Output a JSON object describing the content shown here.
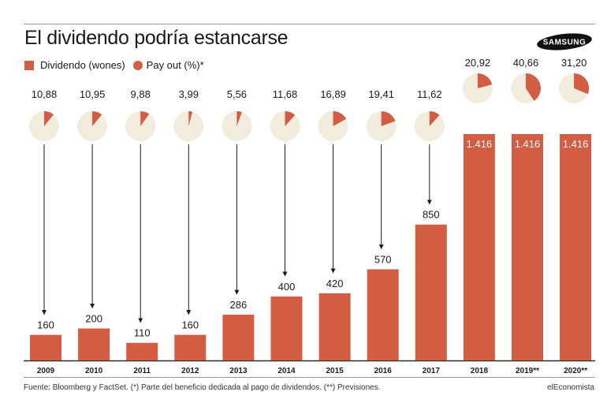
{
  "title": "El dividendo podría estancarse",
  "brand_logo_text": "SAMSUNG",
  "colors": {
    "bar": "#d35d43",
    "pie_bg": "#f1ecdc",
    "axis": "#2a2a2a",
    "text": "#1a1a1a"
  },
  "chart_data": {
    "type": "bar",
    "title": "El dividendo podría estancarse",
    "categories": [
      "2009",
      "2010",
      "2011",
      "2012",
      "2013",
      "2014",
      "2015",
      "2016",
      "2017",
      "2018",
      "2019**",
      "2020**"
    ],
    "series": [
      {
        "name": "Dividendo (wones)",
        "values": [
          160,
          200,
          110,
          160,
          286,
          400,
          420,
          570,
          850,
          1416,
          1416,
          1416
        ],
        "labels": [
          "160",
          "200",
          "110",
          "160",
          "286",
          "400",
          "420",
          "570",
          "850",
          "1.416",
          "1.416",
          "1.416"
        ]
      },
      {
        "name": "Pay out (%)*",
        "values": [
          10.88,
          10.95,
          9.88,
          3.99,
          5.56,
          11.68,
          16.89,
          19.41,
          11.62,
          20.92,
          40.66,
          31.2
        ],
        "labels": [
          "10,88",
          "10,95",
          "9,88",
          "3,99",
          "5,56",
          "11,68",
          "16,89",
          "19,41",
          "11,62",
          "20,92",
          "40,66",
          "31,20"
        ]
      }
    ],
    "ylim": [
      0,
      1470
    ],
    "xlabel": "",
    "ylabel": "",
    "legend_position": "top-left"
  },
  "legend": {
    "dividend": "Dividendo (wones)",
    "payout": "Pay out (%)*"
  },
  "footer": {
    "source": "Fuente: Bloomberg y FactSet. (*) Parte del beneficio dedicada al pago de dividendos. (**) Previsiones.",
    "brand": "elEconomista"
  }
}
